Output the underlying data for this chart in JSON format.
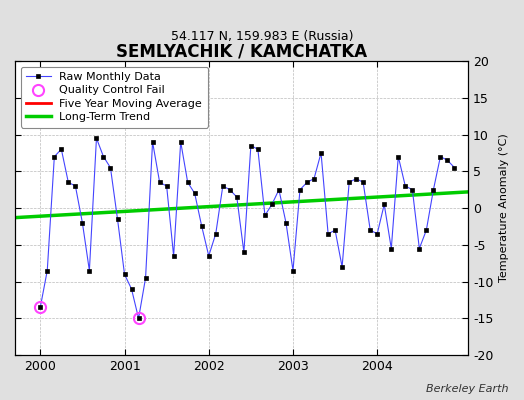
{
  "title": "SEMLYACHIK / KAMCHATKA",
  "subtitle": "54.117 N, 159.983 E (Russia)",
  "ylabel": "Temperature Anomaly (°C)",
  "attribution": "Berkeley Earth",
  "ylim": [
    -20,
    20
  ],
  "xlim": [
    1999.7,
    2005.08
  ],
  "xticks": [
    2000,
    2001,
    2002,
    2003,
    2004
  ],
  "yticks": [
    -20,
    -15,
    -10,
    -5,
    0,
    5,
    10,
    15,
    20
  ],
  "bg_color": "#e0e0e0",
  "plot_bg_color": "#ffffff",
  "raw_data": {
    "x": [
      2000.0,
      2000.083,
      2000.167,
      2000.25,
      2000.333,
      2000.417,
      2000.5,
      2000.583,
      2000.667,
      2000.75,
      2000.833,
      2000.917,
      2001.0,
      2001.083,
      2001.167,
      2001.25,
      2001.333,
      2001.417,
      2001.5,
      2001.583,
      2001.667,
      2001.75,
      2001.833,
      2001.917,
      2002.0,
      2002.083,
      2002.167,
      2002.25,
      2002.333,
      2002.417,
      2002.5,
      2002.583,
      2002.667,
      2002.75,
      2002.833,
      2002.917,
      2003.0,
      2003.083,
      2003.167,
      2003.25,
      2003.333,
      2003.417,
      2003.5,
      2003.583,
      2003.667,
      2003.75,
      2003.833,
      2003.917,
      2004.0,
      2004.083,
      2004.167,
      2004.25,
      2004.333,
      2004.417,
      2004.5,
      2004.583,
      2004.667,
      2004.75,
      2004.833,
      2004.917
    ],
    "y": [
      -13.5,
      -8.5,
      7.0,
      8.0,
      3.5,
      3.0,
      -2.0,
      -8.5,
      9.5,
      7.0,
      5.5,
      -1.5,
      -9.0,
      -11.0,
      -15.0,
      -9.5,
      9.0,
      3.5,
      3.0,
      -6.5,
      9.0,
      3.5,
      2.0,
      -2.5,
      -6.5,
      -3.5,
      3.0,
      2.5,
      1.5,
      -6.0,
      8.5,
      8.0,
      -1.0,
      0.5,
      2.5,
      -2.0,
      -8.5,
      2.5,
      3.5,
      4.0,
      7.5,
      -3.5,
      -3.0,
      -8.0,
      3.5,
      4.0,
      3.5,
      -3.0,
      -3.5,
      0.5,
      -5.5,
      7.0,
      3.0,
      2.5,
      -5.5,
      -3.0,
      2.5,
      7.0,
      6.5,
      5.5
    ]
  },
  "qc_fail": {
    "x": [
      2000.0,
      2001.167
    ],
    "y": [
      -13.5,
      -15.0
    ]
  },
  "trend_x": [
    1999.7,
    2005.08
  ],
  "trend_y": [
    -1.3,
    2.2
  ],
  "raw_color": "#4444ff",
  "raw_marker_color": "#000000",
  "qc_color": "#ff44ff",
  "trend_color": "#00cc00",
  "moving_avg_color": "#ff0000",
  "legend_fontsize": 8.0,
  "title_fontsize": 12,
  "subtitle_fontsize": 9,
  "ylabel_fontsize": 8
}
